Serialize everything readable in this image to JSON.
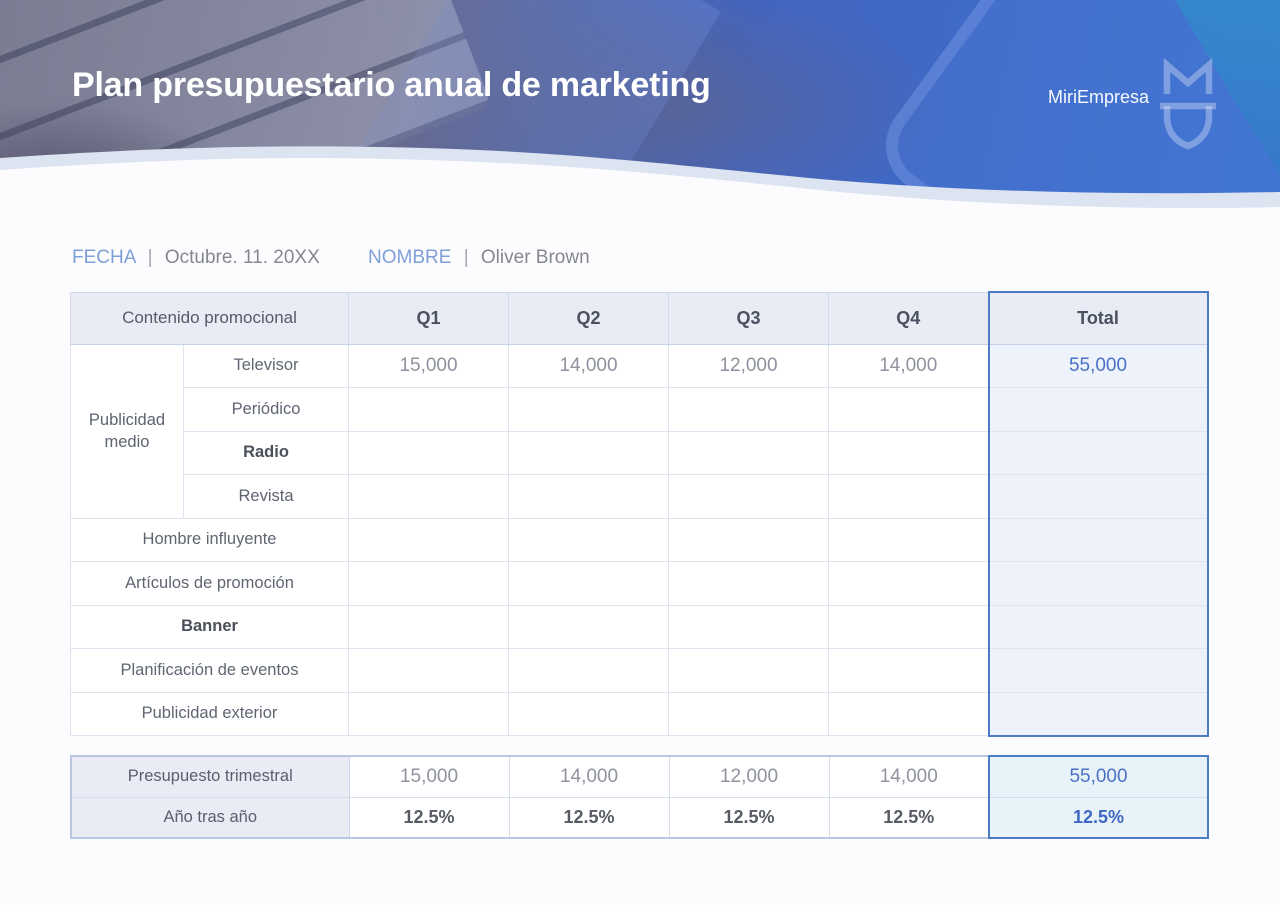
{
  "header": {
    "title": "Plan presupuestario anual de marketing",
    "brand_name": "MiriEmpresa"
  },
  "meta": {
    "date_label": "FECHA",
    "separator": "|",
    "date_value": "Octubre. 11. 20XX",
    "name_label": "NOMBRE",
    "name_value": "Oliver Brown"
  },
  "budget_table": {
    "headers": [
      "Contenido promocional",
      "Q1",
      "Q2",
      "Q3",
      "Q4",
      "Total"
    ],
    "group": {
      "label": "Publicidad medio",
      "span": 4
    },
    "rows": [
      {
        "label": "Televisor",
        "strong": false,
        "values": [
          "15,000",
          "14,000",
          "12,000",
          "14,000"
        ],
        "total": "55,000"
      },
      {
        "label": "Periódico",
        "strong": false,
        "values": [
          "",
          "",
          "",
          ""
        ],
        "total": ""
      },
      {
        "label": "Radio",
        "strong": true,
        "values": [
          "",
          "",
          "",
          ""
        ],
        "total": ""
      },
      {
        "label": "Revista",
        "strong": false,
        "values": [
          "",
          "",
          "",
          ""
        ],
        "total": ""
      },
      {
        "label": "Hombre influyente",
        "strong": false,
        "values": [
          "",
          "",
          "",
          ""
        ],
        "total": ""
      },
      {
        "label": "Artículos de promoción",
        "strong": false,
        "values": [
          "",
          "",
          "",
          ""
        ],
        "total": ""
      },
      {
        "label": "Banner",
        "strong": true,
        "values": [
          "",
          "",
          "",
          ""
        ],
        "total": ""
      },
      {
        "label": "Planificación de eventos",
        "strong": false,
        "values": [
          "",
          "",
          "",
          ""
        ],
        "total": ""
      },
      {
        "label": "Publicidad exterior",
        "strong": false,
        "values": [
          "",
          "",
          "",
          ""
        ],
        "total": ""
      }
    ]
  },
  "summary_table": {
    "rows": [
      {
        "label": "Presupuesto trimestral",
        "percent": false,
        "values": [
          "15,000",
          "14,000",
          "12,000",
          "14,000"
        ],
        "total": "55,000"
      },
      {
        "label": "Año tras año",
        "percent": true,
        "values": [
          "12.5%",
          "12.5%",
          "12.5%",
          "12.5%"
        ],
        "total": "12.5%"
      }
    ]
  },
  "colors": {
    "accent_border_blue": "#4d7cc7",
    "total_text_blue": "#4a70c8",
    "header_row_lavender": "#e9ebf5",
    "total_column_tint": "#eef3fb",
    "summary_total_tint": "#e8f2f9",
    "meta_label_blue": "#7e9fd8"
  }
}
